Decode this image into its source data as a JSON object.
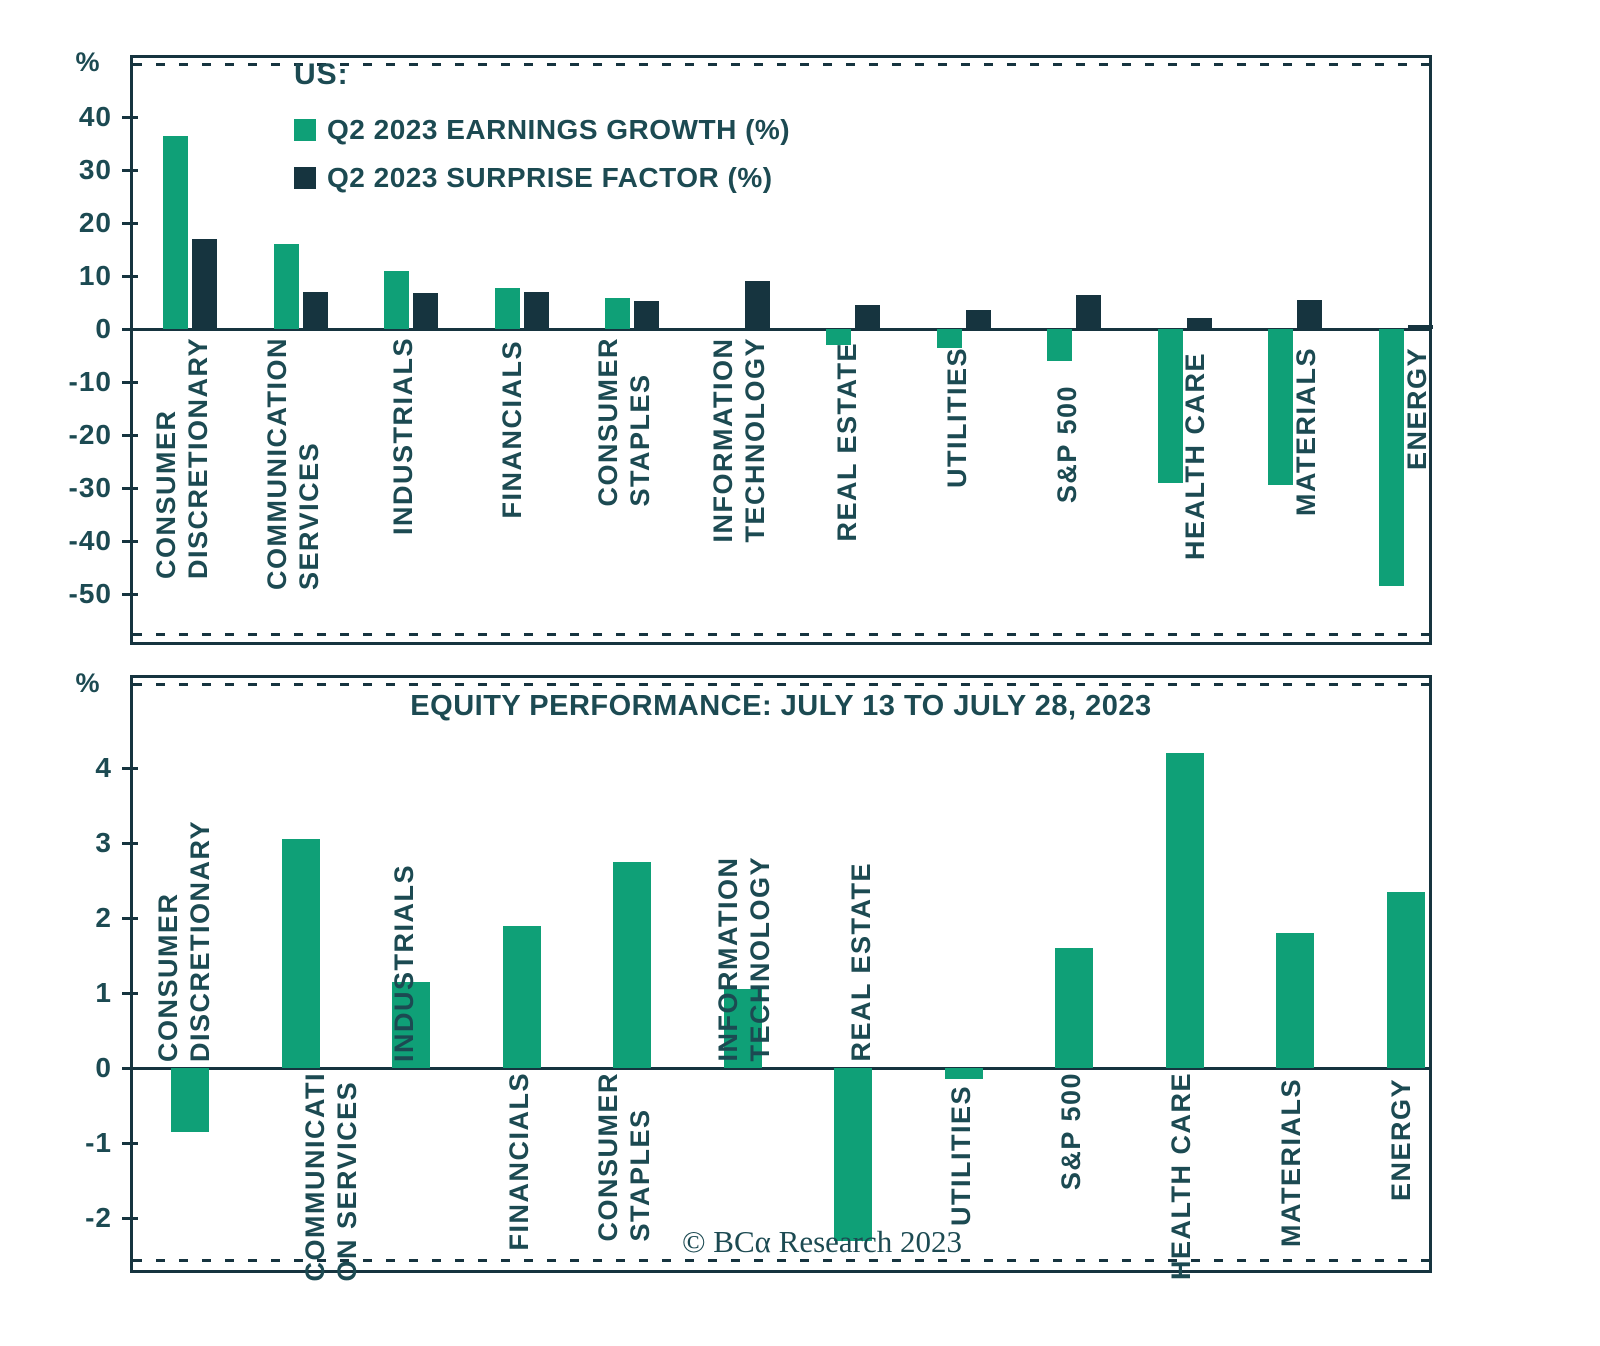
{
  "colors": {
    "green": "#0FA077",
    "dark": "#16343F",
    "text": "#1C4A52"
  },
  "footer": {
    "copyright": "© BCα Research 2023"
  },
  "chart_data": [
    {
      "type": "bar",
      "panel": "top",
      "legend_title": "US:",
      "ylabel": "%",
      "grid": false,
      "legend_position": "top-left-inside",
      "y_ticks": [
        40,
        30,
        20,
        10,
        0,
        -10,
        -20,
        -30,
        -40,
        -50
      ],
      "ylim": [
        -57,
        46
      ],
      "categories": [
        "CONSUMER DISCRETIONARY",
        "COMMUNICATION SERVICES",
        "INDUSTRIALS",
        "FINANCIALS",
        "CONSUMER STAPLES",
        "INFORMATION TECHNOLOGY",
        "REAL ESTATE",
        "UTILITIES",
        "S&P 500",
        "HEALTH CARE",
        "MATERIALS",
        "ENERGY"
      ],
      "category_label_lines": [
        [
          "CONSUMER",
          "DISCRETIONARY"
        ],
        [
          "COMMUNICATION",
          "SERVICES"
        ],
        [
          "INDUSTRIALS"
        ],
        [
          "FINANCIALS"
        ],
        [
          "CONSUMER",
          "STAPLES"
        ],
        [
          "INFORMATION",
          "TECHNOLOGY"
        ],
        [
          "REAL ESTATE"
        ],
        [
          "UTILITIES"
        ],
        [
          "S&P 500"
        ],
        [
          "HEALTH CARE"
        ],
        [
          "MATERIALS"
        ],
        [
          "ENERGY"
        ]
      ],
      "series": [
        {
          "name": "Q2 2023 EARNINGS GROWTH (%)",
          "color": "#0FA077",
          "values": [
            36.4,
            16,
            11,
            7.8,
            5.8,
            0,
            -3,
            -3.5,
            -6,
            -29,
            -29.5,
            -48.5
          ]
        },
        {
          "name": "Q2 2023 SURPRISE FACTOR (%)",
          "color": "#16343F",
          "values": [
            17,
            7,
            6.8,
            6.9,
            5.2,
            9,
            4.5,
            3.5,
            6.5,
            2,
            5.5,
            0.8
          ]
        }
      ]
    },
    {
      "type": "bar",
      "panel": "bottom",
      "title": "EQUITY PERFORMANCE: JULY 13 TO JULY 28, 2023",
      "ylabel": "%",
      "grid": false,
      "y_ticks": [
        4,
        3,
        2,
        1,
        0,
        -1,
        -2
      ],
      "ylim": [
        -2.9,
        4.9
      ],
      "categories": [
        "CONSUMER DISCRETIONARY",
        "COMMUNICATION SERVICES",
        "INDUSTRIALS",
        "FINANCIALS",
        "CONSUMER STAPLES",
        "INFORMATION TECHNOLOGY",
        "REAL ESTATE",
        "UTILITIES",
        "S&P 500",
        "HEALTH CARE",
        "MATERIALS",
        "ENERGY"
      ],
      "category_label_lines": [
        [
          "CONSUMER",
          "DISCRETIONARY"
        ],
        [
          "COMMUNICATI",
          "ON SERVICES"
        ],
        [
          "INDUSTRIALS"
        ],
        [
          "FINANCIALS"
        ],
        [
          "CONSUMER",
          "STAPLES"
        ],
        [
          "INFORMATION",
          "TECHNOLOGY"
        ],
        [
          "REAL ESTATE"
        ],
        [
          "UTILITIES"
        ],
        [
          "S&P 500"
        ],
        [
          "HEALTH CARE"
        ],
        [
          "MATERIALS"
        ],
        [
          "ENERGY"
        ]
      ],
      "series": [
        {
          "name": "EQUITY PERFORMANCE: JULY 13 TO JULY 28, 2023",
          "color": "#0FA077",
          "values": [
            -0.85,
            3.05,
            1.15,
            1.9,
            2.75,
            1.05,
            -2.3,
            -0.15,
            1.6,
            4.2,
            1.8,
            2.35
          ]
        }
      ]
    }
  ]
}
